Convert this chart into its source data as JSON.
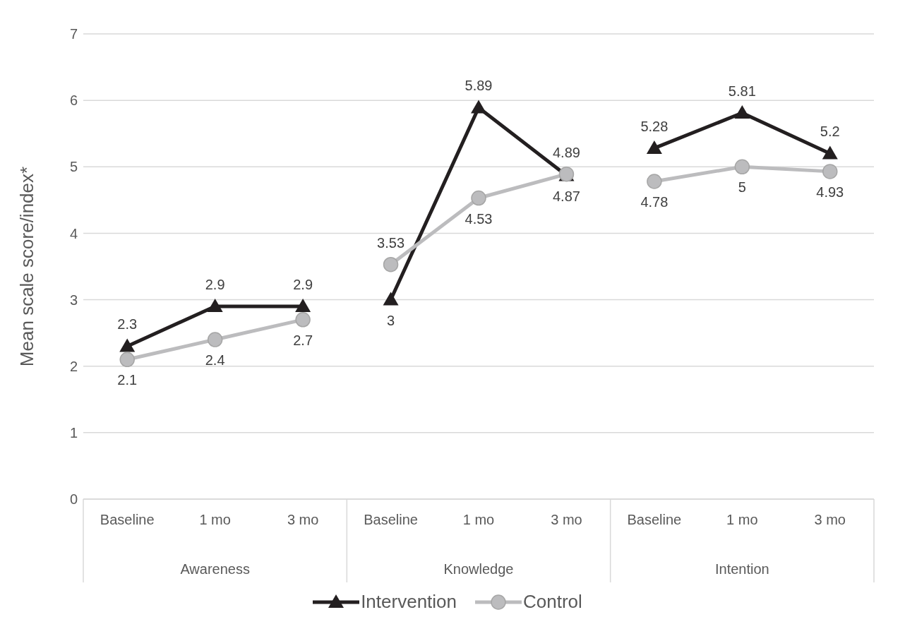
{
  "chart_data": {
    "type": "line",
    "ylabel": "Mean scale score/index*",
    "categories": [
      "Baseline",
      "1 mo",
      "3 mo",
      "Baseline",
      "1 mo",
      "3 mo",
      "Baseline",
      "1 mo",
      "3 mo"
    ],
    "annotations": [
      "Awareness",
      "Knowledge",
      "Intention"
    ],
    "series": [
      {
        "name": "Intervention",
        "color": "#231f20",
        "marker": "triangle",
        "values": [
          2.3,
          2.9,
          2.9,
          3,
          5.89,
          4.87,
          5.28,
          5.81,
          5.2
        ]
      },
      {
        "name": "Control",
        "color": "#bcbcbe",
        "marker": "circle",
        "values": [
          2.1,
          2.4,
          2.7,
          3.53,
          4.53,
          4.89,
          4.78,
          5,
          4.93
        ]
      }
    ],
    "ylim": [
      0,
      7
    ],
    "yticks": [
      0,
      1,
      2,
      3,
      4,
      5,
      6,
      7
    ],
    "grid": "y",
    "legend": "bottom",
    "data_labels": true
  }
}
